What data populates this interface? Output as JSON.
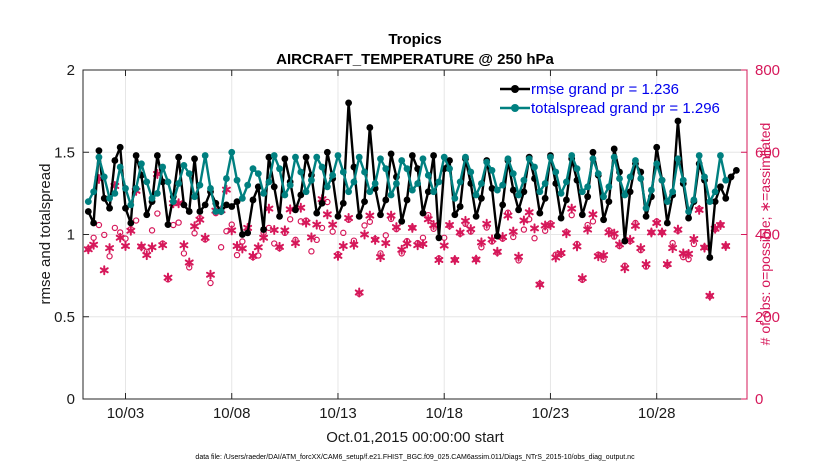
{
  "chart_data": {
    "type": "line",
    "title": "Tropics",
    "subtitle": "AIRCRAFT_TEMPERATURE @ 250 hPa",
    "xlabel": "Oct.01,2015 00:00:00 start",
    "ylabel": "rmse and totalspread",
    "y2label": "# of obs: o=possible; ∗=assimilated",
    "footnote": "data file: /Users/raeder/DAI/ATM_forcXX/CAM6_setup/f.e21.FHIST_BGC.f09_025.CAM6assim.011/Diags_NTrS_2015-10/obs_diag_output.nc",
    "xlim": [
      1.0,
      32.25
    ],
    "ylim": [
      0,
      2
    ],
    "y2lim": [
      0,
      800
    ],
    "x_ticks": [
      3,
      8,
      13,
      18,
      23,
      28
    ],
    "x_tick_labels": [
      "10/03",
      "10/08",
      "10/13",
      "10/18",
      "10/23",
      "10/28"
    ],
    "y_ticks": [
      0,
      0.5,
      1,
      1.5,
      2
    ],
    "y_tick_labels": [
      "0",
      "0.5",
      "1",
      "1.5",
      "2"
    ],
    "y2_ticks": [
      0,
      200,
      400,
      600,
      800
    ],
    "y2_tick_labels": [
      "0",
      "200",
      "400",
      "600",
      "800"
    ],
    "grid": true,
    "legend_position": "top-right",
    "x_start": 1.25,
    "x_step": 0.25,
    "series": [
      {
        "name": "rmse",
        "legend": "rmse grand pr = 1.236",
        "axis": "left",
        "color": "#000000",
        "values": [
          1.14,
          1.07,
          1.51,
          1.22,
          1.16,
          1.45,
          1.53,
          1.16,
          1.07,
          1.48,
          1.36,
          1.12,
          1.2,
          1.48,
          1.32,
          1.06,
          1.23,
          1.47,
          1.18,
          1.14,
          1.46,
          1.14,
          1.18,
          1.26,
          1.19,
          1.14,
          1.18,
          1.17,
          1.2,
          1.0,
          1.01,
          1.21,
          1.29,
          1.03,
          1.47,
          1.29,
          1.11,
          1.46,
          1.32,
          1.15,
          1.24,
          1.47,
          1.36,
          1.13,
          1.19,
          1.5,
          1.34,
          1.11,
          1.19,
          1.8,
          1.41,
          1.11,
          1.2,
          1.65,
          1.28,
          1.12,
          1.21,
          1.49,
          1.35,
          1.08,
          1.21,
          1.48,
          1.4,
          1.13,
          1.26,
          1.48,
          0.98,
          1.4,
          1.45,
          1.12,
          1.17,
          1.46,
          1.31,
          1.11,
          1.22,
          1.45,
          1.28,
          0.99,
          1.18,
          1.45,
          1.27,
          1.15,
          1.26,
          1.47,
          1.34,
          1.13,
          1.22,
          1.48,
          1.31,
          1.1,
          1.21,
          1.46,
          1.33,
          1.12,
          1.23,
          1.5,
          1.36,
          1.09,
          1.2,
          1.52,
          1.38,
          0.96,
          1.26,
          1.43,
          1.38,
          1.11,
          1.23,
          1.53,
          1.33,
          1.07,
          1.24,
          1.69,
          1.31,
          1.1,
          1.2,
          1.43,
          1.33,
          0.86,
          1.2,
          1.29,
          1.22,
          1.35,
          1.39
        ]
      },
      {
        "name": "totalspread",
        "legend": "totalspread grand pr = 1.296",
        "axis": "left",
        "color": "#008080",
        "values": [
          1.2,
          1.26,
          1.47,
          1.35,
          1.22,
          1.25,
          1.41,
          1.28,
          1.18,
          1.28,
          1.43,
          1.32,
          1.22,
          1.25,
          1.41,
          1.32,
          1.2,
          1.31,
          1.42,
          1.37,
          1.23,
          1.3,
          1.48,
          1.28,
          1.14,
          1.14,
          1.34,
          1.5,
          1.33,
          1.22,
          1.3,
          1.4,
          1.37,
          1.25,
          1.32,
          1.48,
          1.4,
          1.24,
          1.3,
          1.47,
          1.38,
          1.26,
          1.33,
          1.47,
          1.41,
          1.29,
          1.36,
          1.48,
          1.38,
          1.26,
          1.32,
          1.47,
          1.38,
          1.26,
          1.31,
          1.46,
          1.4,
          1.24,
          1.31,
          1.45,
          1.4,
          1.27,
          1.31,
          1.46,
          1.36,
          1.26,
          1.32,
          1.47,
          1.4,
          1.22,
          1.32,
          1.47,
          1.38,
          1.24,
          1.31,
          1.44,
          1.39,
          1.27,
          1.3,
          1.46,
          1.37,
          1.24,
          1.33,
          1.46,
          1.41,
          1.26,
          1.31,
          1.47,
          1.38,
          1.25,
          1.32,
          1.48,
          1.4,
          1.26,
          1.29,
          1.46,
          1.37,
          1.23,
          1.29,
          1.47,
          1.34,
          1.24,
          1.35,
          1.45,
          1.34,
          1.16,
          1.27,
          1.43,
          1.33,
          1.2,
          1.26,
          1.46,
          1.33,
          1.14,
          1.21,
          1.48,
          1.35,
          1.2,
          1.26,
          1.48,
          1.33
        ]
      },
      {
        "name": "obs possible",
        "axis": "right",
        "marker": "o",
        "color": "#d6185a",
        "values": [
          365,
          392,
          423,
          399,
          347,
          416,
          405,
          390,
          413,
          434,
          370,
          358,
          410,
          451,
          378,
          291,
          423,
          429,
          354,
          320,
          403,
          440,
          388,
          282,
          452,
          369,
          408,
          424,
          350,
          383,
          404,
          345,
          349,
          404,
          416,
          378,
          367,
          404,
          437,
          387,
          432,
          434,
          359,
          387,
          416,
          479,
          407,
          352,
          404,
          436,
          385,
          256,
          422,
          431,
          389,
          354,
          398,
          438,
          413,
          354,
          384,
          417,
          379,
          392,
          447,
          414,
          342,
          392,
          421,
          339,
          402,
          426,
          407,
          340,
          369,
          417,
          383,
          356,
          390,
          453,
          394,
          337,
          412,
          437,
          391,
          280,
          409,
          427,
          351,
          352,
          406,
          447,
          377,
          290,
          423,
          432,
          351,
          339,
          410,
          395,
          372,
          324,
          384,
          428,
          362,
          322,
          405,
          432,
          405,
          326,
          379,
          409,
          345,
          340,
          377,
          462,
          369,
          250,
          413,
          424,
          372
        ]
      },
      {
        "name": "obs assimilated",
        "axis": "right",
        "marker": "*",
        "color": "#d6185a",
        "values": [
          364,
          375,
          535,
          313,
          367,
          518,
          392,
          372,
          409,
          506,
          371,
          350,
          369,
          547,
          374,
          295,
          476,
          476,
          374,
          332,
          420,
          436,
          392,
          302,
          458,
          459,
          509,
          410,
          372,
          366,
          416,
          348,
          369,
          392,
          463,
          411,
          370,
          410,
          461,
          379,
          465,
          429,
          393,
          424,
          486,
          449,
          424,
          348,
          372,
          440,
          375,
          259,
          400,
          446,
          387,
          345,
          379,
          446,
          418,
          363,
          378,
          416,
          374,
          377,
          437,
          423,
          338,
          373,
          423,
          338,
          405,
          433,
          413,
          339,
          381,
          426,
          388,
          358,
          394,
          446,
          407,
          346,
          434,
          454,
          415,
          278,
          422,
          423,
          344,
          355,
          403,
          463,
          371,
          294,
          412,
          449,
          347,
          350,
          405,
          402,
          376,
          318,
          387,
          421,
          367,
          328,
          405,
          428,
          405,
          328,
          367,
          412,
          354,
          353,
          389,
          460,
          368,
          251,
          414,
          423,
          372
        ]
      }
    ]
  }
}
